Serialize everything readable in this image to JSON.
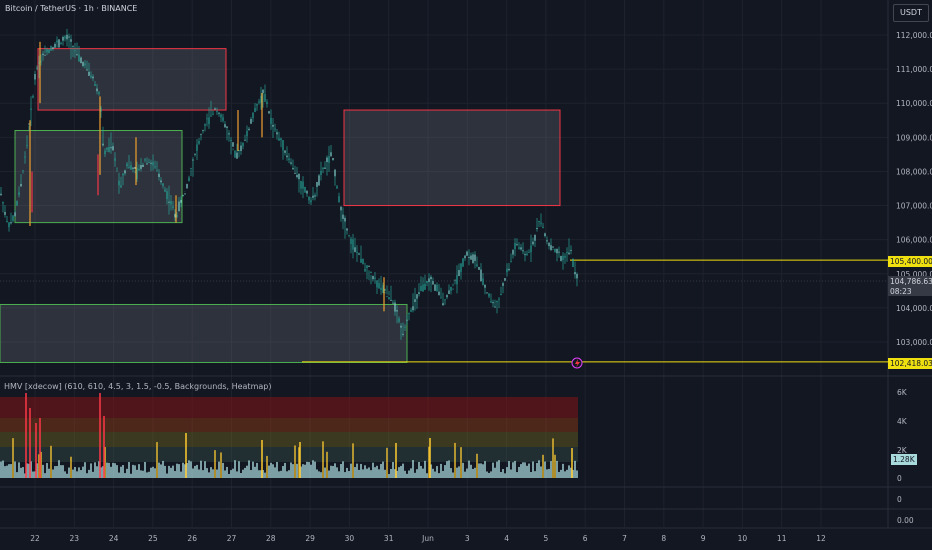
{
  "header": {
    "title": "Bitcoin / TetherUS · 1h · BINANCE",
    "currency_button": "USDT"
  },
  "indicator": {
    "title": "HMV [xdecow] (610, 610, 4.5, 3, 1.5, -0.5, Backgrounds, Heatmap)"
  },
  "price_axis": {
    "labels": [
      "112,000.00",
      "111,000.00",
      "110,000.00",
      "109,000.00",
      "108,000.00",
      "107,000.00",
      "106,000.00",
      "105,000.00",
      "104,000.00",
      "103,000.00"
    ],
    "values": [
      112000,
      111000,
      110000,
      109000,
      108000,
      107000,
      106000,
      105000,
      104000,
      103000
    ],
    "tags": {
      "level_upper": "105,400.00",
      "last_price": "104,786.63",
      "countdown": "08:23",
      "level_lower": "102,418.03"
    }
  },
  "volume_axis": {
    "labels": [
      "6K",
      "4K",
      "2K",
      "0"
    ],
    "current_volume": "1.28K"
  },
  "extra_panes": {
    "pane1_label": "0",
    "pane2_label": "0.00"
  },
  "time_axis": {
    "labels": [
      "22",
      "23",
      "24",
      "25",
      "26",
      "27",
      "28",
      "29",
      "30",
      "31",
      "Jun",
      "3",
      "4",
      "5",
      "6",
      "7",
      "8",
      "9",
      "10",
      "11",
      "12"
    ]
  },
  "chart_data": {
    "type": "candlestick",
    "symbol": "BTCUSDT",
    "timeframe": "1h",
    "price_range": [
      102200,
      112400
    ],
    "horizontal_levels": [
      105400,
      102418.03
    ],
    "last_price": 104786.63,
    "zones": [
      {
        "kind": "supply",
        "color": "#f23645",
        "from_day": "22",
        "to_day": "26",
        "price_top": 111600,
        "price_bottom": 109800
      },
      {
        "kind": "demand",
        "color": "#4caf50",
        "from_day": "21.5",
        "to_day": "25",
        "price_top": 109200,
        "price_bottom": 106500
      },
      {
        "kind": "supply",
        "color": "#f23645",
        "from_day": "30",
        "to_day": "4",
        "price_top": 109800,
        "price_bottom": 107000
      },
      {
        "kind": "demand",
        "color": "#4caf50",
        "from_day": "21",
        "to_day": "31",
        "price_top": 104100,
        "price_bottom": 102400
      }
    ],
    "colors": {
      "up": "#26a69a",
      "down": "#26a69a",
      "level": "#f0e010",
      "volume": "#a8dadc",
      "volume_spike": "#f23645",
      "volume_high": "#f0c030"
    }
  }
}
